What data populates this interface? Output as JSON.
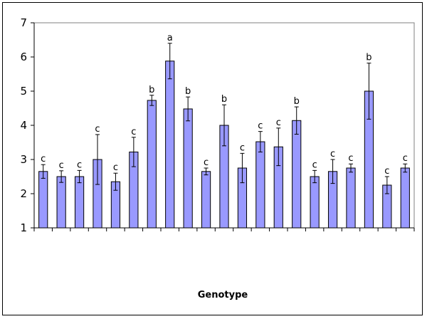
{
  "chart_data": {
    "type": "bar",
    "title": "",
    "xlabel": "Genotype",
    "ylabel": "",
    "ylim": [
      1,
      7
    ],
    "yticks": [
      1,
      2,
      3,
      4,
      5,
      6,
      7
    ],
    "grid": false,
    "bar_color": "#9999ff",
    "values": [
      2.65,
      2.5,
      2.5,
      3.0,
      2.35,
      3.22,
      4.73,
      5.88,
      4.48,
      2.65,
      4.0,
      2.75,
      3.52,
      3.37,
      4.14,
      2.5,
      2.65,
      2.75,
      5.0,
      2.25,
      2.75
    ],
    "errors": [
      0.2,
      0.17,
      0.18,
      0.73,
      0.25,
      0.43,
      0.15,
      0.52,
      0.35,
      0.1,
      0.6,
      0.43,
      0.3,
      0.55,
      0.4,
      0.18,
      0.35,
      0.12,
      0.82,
      0.25,
      0.12
    ],
    "labels": [
      "c",
      "c",
      "c",
      "c",
      "c",
      "c",
      "b",
      "a",
      "b",
      "c",
      "b",
      "c",
      "c",
      "c",
      "b",
      "c",
      "c",
      "c",
      "b",
      "c",
      "c"
    ]
  }
}
